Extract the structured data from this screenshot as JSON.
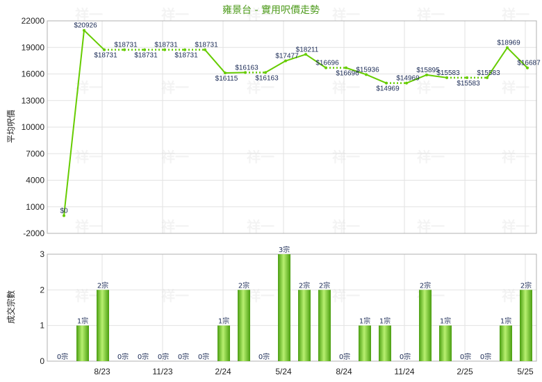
{
  "title": "雍景台 - 實用呎價走勢",
  "watermark": "祥一",
  "chart_data": [
    {
      "type": "line",
      "ylabel": "平均呎價",
      "ylim": [
        -2000,
        22000
      ],
      "yticks": [
        -2000,
        1000,
        4000,
        7000,
        10000,
        13000,
        16000,
        19000,
        22000
      ],
      "grid": true,
      "color": "#66cc00",
      "series": [
        {
          "values": [
            0,
            20926,
            18731,
            18731,
            18731,
            18731,
            18731,
            18731,
            16115,
            16163,
            16163,
            17477,
            18211,
            16696,
            16696,
            15936,
            14969,
            14969,
            15895,
            15583,
            15583,
            15583,
            18969,
            16687
          ],
          "labels": [
            "$0",
            "$20926",
            "$18731",
            "$18731",
            "$18731",
            "$18731",
            "$18731",
            "$18731",
            "$16115",
            "$16163",
            "$16163",
            "$17477",
            "$18211",
            "$16696",
            "$16696",
            "$15936",
            "$14969",
            "$14969",
            "$15895",
            "$15583",
            "$15583",
            "$15583",
            "$18969",
            "$16687"
          ]
        }
      ]
    },
    {
      "type": "bar",
      "ylabel": "成交宗數",
      "ylim": [
        0,
        3
      ],
      "yticks": [
        0,
        1,
        2,
        3
      ],
      "grid": true,
      "color": "#66cc00",
      "x_tick_labels": [
        "8/23",
        "11/23",
        "2/24",
        "5/24",
        "8/24",
        "11/24",
        "2/25",
        "5/25"
      ],
      "values": [
        0,
        1,
        2,
        0,
        0,
        0,
        0,
        0,
        1,
        2,
        0,
        3,
        2,
        2,
        0,
        1,
        1,
        0,
        2,
        1,
        0,
        0,
        1,
        2
      ],
      "labels": [
        "0宗",
        "1宗",
        "2宗",
        "0宗",
        "0宗",
        "0宗",
        "0宗",
        "0宗",
        "1宗",
        "2宗",
        "0宗",
        "3宗",
        "2宗",
        "2宗",
        "0宗",
        "1宗",
        "1宗",
        "0宗",
        "2宗",
        "1宗",
        "0宗",
        "0宗",
        "1宗",
        "2宗"
      ]
    }
  ]
}
